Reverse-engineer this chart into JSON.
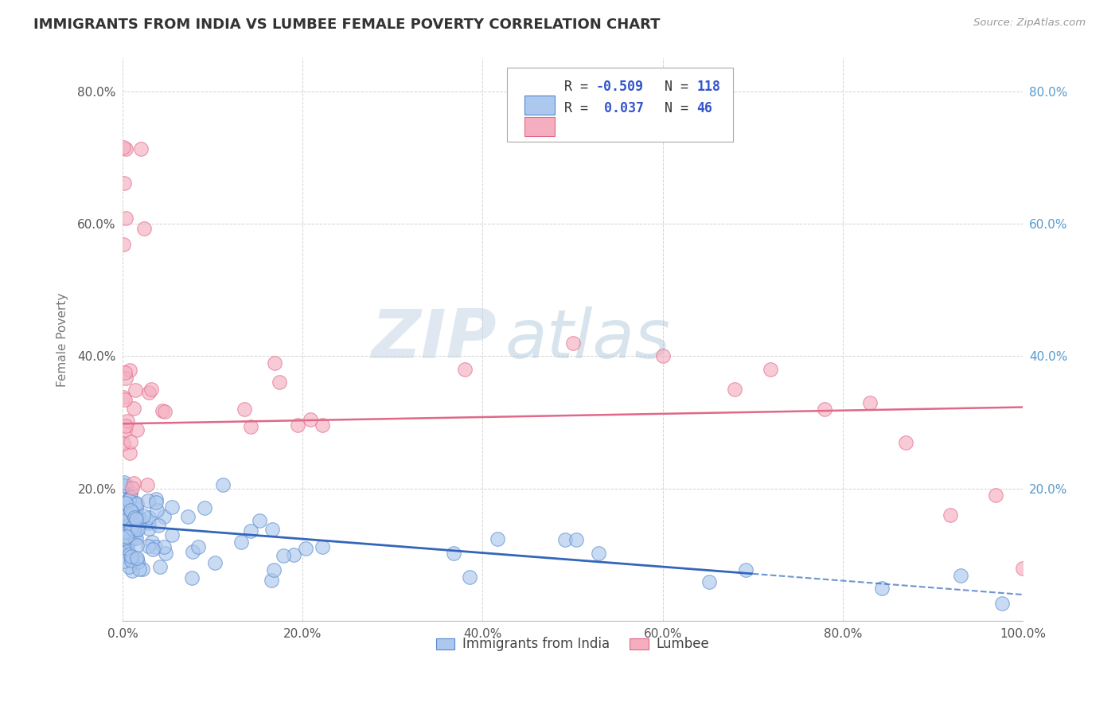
{
  "title": "IMMIGRANTS FROM INDIA VS LUMBEE FEMALE POVERTY CORRELATION CHART",
  "source": "Source: ZipAtlas.com",
  "ylabel": "Female Poverty",
  "xlim": [
    0.0,
    1.0
  ],
  "ylim": [
    0.0,
    0.85
  ],
  "x_ticks": [
    0.0,
    0.2,
    0.4,
    0.6,
    0.8,
    1.0
  ],
  "x_tick_labels": [
    "0.0%",
    "20.0%",
    "40.0%",
    "60.0%",
    "80.0%",
    "100.0%"
  ],
  "y_ticks": [
    0.0,
    0.2,
    0.4,
    0.6,
    0.8
  ],
  "y_tick_labels": [
    "",
    "20.0%",
    "40.0%",
    "60.0%",
    "80.0%"
  ],
  "legend_labels": [
    "Immigrants from India",
    "Lumbee"
  ],
  "blue_R": "-0.509",
  "blue_N": "118",
  "pink_R": "0.037",
  "pink_N": "46",
  "blue_color": "#adc8ee",
  "pink_color": "#f5aec0",
  "blue_edge_color": "#5588cc",
  "pink_edge_color": "#e06888",
  "blue_line_color": "#3366bb",
  "pink_line_color": "#e06888",
  "watermark_color": "#c8d8e8",
  "background_color": "#ffffff",
  "grid_color": "#c8c8c8",
  "title_color": "#333333",
  "axis_label_color": "#777777",
  "right_tick_color": "#5599cc",
  "legend_text_color_R": "#3355cc",
  "legend_text_color_N": "#333333"
}
